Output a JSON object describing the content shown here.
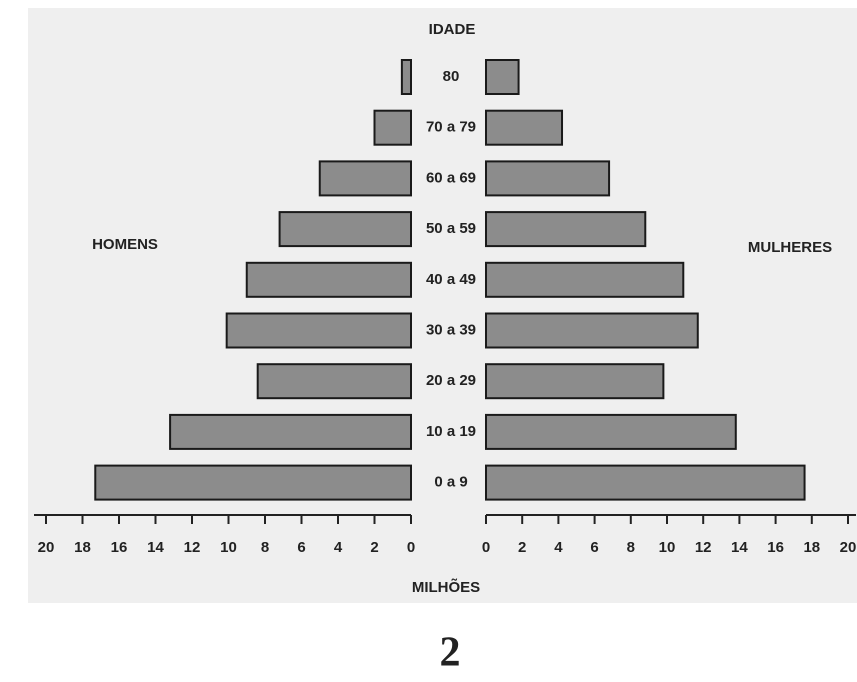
{
  "chart_data": {
    "type": "pyramid",
    "title": "IDADE",
    "x_label": "MILHÕES",
    "categories": [
      "80",
      "70 a 79",
      "60 a 69",
      "50 a 59",
      "40 a 49",
      "30 a 39",
      "20 a 29",
      "10 a 19",
      "0 a 9"
    ],
    "series": [
      {
        "name": "HOMENS",
        "color": "#8c8c8c",
        "values": [
          0.5,
          2,
          5,
          7.2,
          9,
          10.1,
          8.4,
          13.2,
          17.3
        ]
      },
      {
        "name": "MULHERES",
        "color": "#8c8c8c",
        "values": [
          1.8,
          4.2,
          6.8,
          8.8,
          10.9,
          11.7,
          9.8,
          13.8,
          17.6
        ]
      }
    ],
    "xlim": [
      0,
      20
    ],
    "xticks": [
      0,
      2,
      4,
      6,
      8,
      10,
      12,
      14,
      16,
      18,
      20
    ]
  },
  "caption": "2"
}
